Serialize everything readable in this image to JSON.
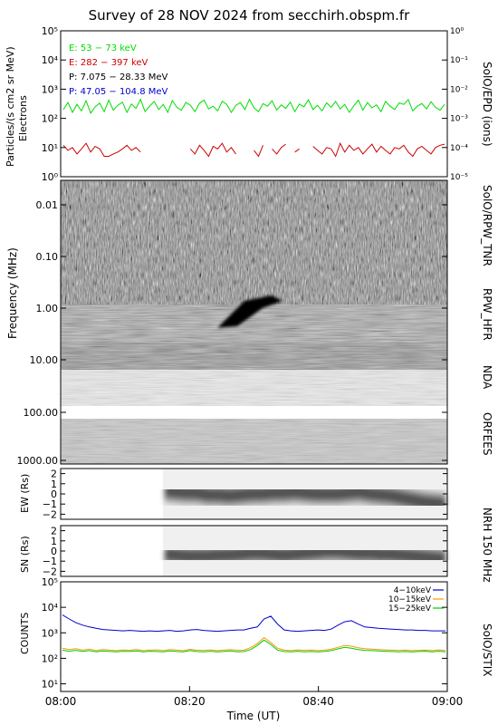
{
  "title": "Survey of 28 NOV 2024 from secchirh.obspm.fr",
  "colors": {
    "green": "#00dd00",
    "red": "#cc0000",
    "black": "#000000",
    "blue": "#0000cc",
    "orange": "#ff9900"
  },
  "chart_data": [
    {
      "type": "line",
      "panel": "epd",
      "ylabel": "Particles/(s cm2 sr MeV)",
      "ylabel2": "Electrons",
      "right_label": "SolO/EPD (ions)",
      "yscale": "log",
      "ylim": [
        1,
        100000
      ],
      "y2lim": [
        1e-05,
        1
      ],
      "yticks": [
        "10⁰",
        "10¹",
        "10²",
        "10³",
        "10⁴",
        "10⁵"
      ],
      "y2ticks": [
        "10⁻⁵",
        "10⁻⁴",
        "10⁻³",
        "10⁻²",
        "10⁻¹",
        "10⁰"
      ],
      "legend": [
        "E: 53 − 73 keV",
        "E: 282 − 397 keV",
        "P: 7.075 − 28.33 MeV",
        "P: 47.05 − 104.8 MeV"
      ],
      "series": [
        {
          "name": "E: 53 − 73 keV",
          "color": "#00dd00",
          "values": [
            200,
            350,
            160,
            300,
            180,
            400,
            150,
            250,
            330,
            170,
            420,
            190,
            280,
            360,
            160,
            310,
            220,
            450,
            170,
            260,
            380,
            200,
            300,
            160,
            410,
            240,
            190,
            350,
            280,
            170,
            330,
            420,
            210,
            260,
            180,
            390,
            300,
            160,
            280,
            350,
            200,
            450,
            230,
            170,
            320,
            260,
            400,
            190,
            290,
            220,
            360,
            170,
            310,
            250,
            430,
            200,
            280,
            180,
            340,
            240,
            380,
            210,
            300,
            160,
            270,
            420,
            190,
            350,
            230,
            290,
            170,
            380,
            260,
            200,
            340,
            300,
            440,
            180,
            260,
            320,
            210,
            370,
            240,
            190,
            300
          ]
        },
        {
          "name": "E: 282 − 397 keV",
          "color": "#cc0000",
          "values": [
            12,
            8,
            10,
            6,
            9,
            14,
            7,
            11,
            9,
            5,
            5,
            6,
            7,
            9,
            12,
            8,
            10,
            7,
            null,
            null,
            null,
            6,
            null,
            null,
            10,
            null,
            null,
            null,
            9,
            6,
            12,
            8,
            5,
            11,
            9,
            14,
            7,
            10,
            6,
            null,
            null,
            null,
            8,
            5,
            12,
            null,
            9,
            6,
            10,
            13,
            null,
            7,
            9,
            null,
            null,
            11,
            8,
            6,
            10,
            9,
            5,
            14,
            7,
            12,
            8,
            10,
            6,
            9,
            13,
            7,
            11,
            8,
            6,
            10,
            9,
            12,
            7,
            5,
            9,
            11,
            8,
            6,
            10,
            12,
            13
          ]
        }
      ]
    },
    {
      "type": "heatmap",
      "panel": "spectrogram",
      "ylabel": "Frequency (MHz)",
      "yscale": "log",
      "yticks": [
        "0.01",
        "0.10",
        "1.00",
        "10.00",
        "100.00",
        "1000.00"
      ],
      "instruments": [
        "SolO/RPW_TNR",
        "RPW_HFR",
        "NDA",
        "ORFEES"
      ]
    },
    {
      "type": "heatmap",
      "panel": "nrh-ew",
      "ylabel": "EW (Rs)",
      "yticks": [
        "2",
        "1",
        "0",
        "−1",
        "−2"
      ],
      "ylim": [
        -2.5,
        2.5
      ],
      "right_label": "NRH 150 MHz",
      "data_start": "08:16",
      "centroid": [
        0.3,
        0.2,
        0.1,
        0.1,
        -0.1,
        -0.1,
        -0.2,
        -0.1,
        0.0,
        0.0,
        0.1,
        0.1,
        0.2,
        0.1,
        0.0,
        0.0,
        0.0,
        0.1,
        0.2,
        0.0,
        -0.1,
        -0.2,
        -0.4,
        -0.6,
        -0.8,
        -0.9,
        -1.0
      ]
    },
    {
      "type": "heatmap",
      "panel": "nrh-sn",
      "ylabel": "SN (Rs)",
      "yticks": [
        "2",
        "1",
        "0",
        "−1",
        "−2"
      ],
      "ylim": [
        -2.5,
        2.5
      ],
      "data_start": "08:16",
      "centroid": [
        -0.3,
        -0.4,
        -0.5,
        -0.5,
        -0.5,
        -0.4,
        -0.4,
        -0.3,
        -0.2,
        -0.2,
        -0.3,
        -0.4,
        -0.3,
        -0.2,
        -0.1,
        0.0,
        0.0,
        -0.1,
        -0.2,
        -0.2,
        -0.3,
        -0.3,
        -0.4,
        -0.5,
        -0.6,
        -0.7,
        -0.8
      ]
    },
    {
      "type": "line",
      "panel": "stix",
      "ylabel": "COUNTS",
      "right_label": "SolO/STIX",
      "yscale": "log",
      "ylim": [
        1,
        100000
      ],
      "yticks": [
        "10¹",
        "10²",
        "10³",
        "10⁴",
        "10⁵"
      ],
      "xlabel": "Time (UT)",
      "xticks": [
        "08:00",
        "08:20",
        "08:40",
        "09:00"
      ],
      "series": [
        {
          "name": "4−10keV",
          "color": "#0000cc",
          "values": [
            5000,
            3500,
            2500,
            2000,
            1700,
            1500,
            1350,
            1300,
            1250,
            1200,
            1250,
            1200,
            1150,
            1200,
            1150,
            1200,
            1250,
            1150,
            1200,
            1300,
            1350,
            1250,
            1200,
            1150,
            1200,
            1250,
            1300,
            1300,
            1500,
            1700,
            3500,
            4500,
            2200,
            1300,
            1200,
            1150,
            1200,
            1250,
            1300,
            1250,
            1400,
            2000,
            2700,
            3000,
            2200,
            1700,
            1600,
            1500,
            1450,
            1400,
            1350,
            1300,
            1300,
            1250,
            1250,
            1200,
            1200,
            1200
          ]
        },
        {
          "name": "10−15keV",
          "color": "#ff9900",
          "values": [
            250,
            220,
            240,
            210,
            230,
            200,
            220,
            210,
            200,
            215,
            205,
            220,
            200,
            210,
            215,
            200,
            220,
            210,
            200,
            225,
            210,
            205,
            215,
            200,
            210,
            220,
            205,
            210,
            260,
            380,
            650,
            420,
            250,
            210,
            200,
            215,
            205,
            210,
            200,
            210,
            230,
            270,
            320,
            300,
            260,
            240,
            230,
            220,
            215,
            210,
            205,
            210,
            200,
            205,
            210,
            200,
            215,
            200
          ]
        },
        {
          "name": "15−25keV",
          "color": "#00cc00",
          "values": [
            210,
            190,
            205,
            185,
            200,
            180,
            195,
            185,
            180,
            190,
            185,
            195,
            180,
            190,
            185,
            180,
            195,
            185,
            180,
            200,
            185,
            180,
            190,
            180,
            185,
            195,
            180,
            185,
            220,
            320,
            520,
            350,
            210,
            185,
            180,
            190,
            180,
            185,
            180,
            185,
            200,
            235,
            270,
            250,
            220,
            205,
            200,
            195,
            190,
            185,
            180,
            185,
            180,
            185,
            190,
            180,
            190,
            180
          ]
        }
      ]
    }
  ]
}
